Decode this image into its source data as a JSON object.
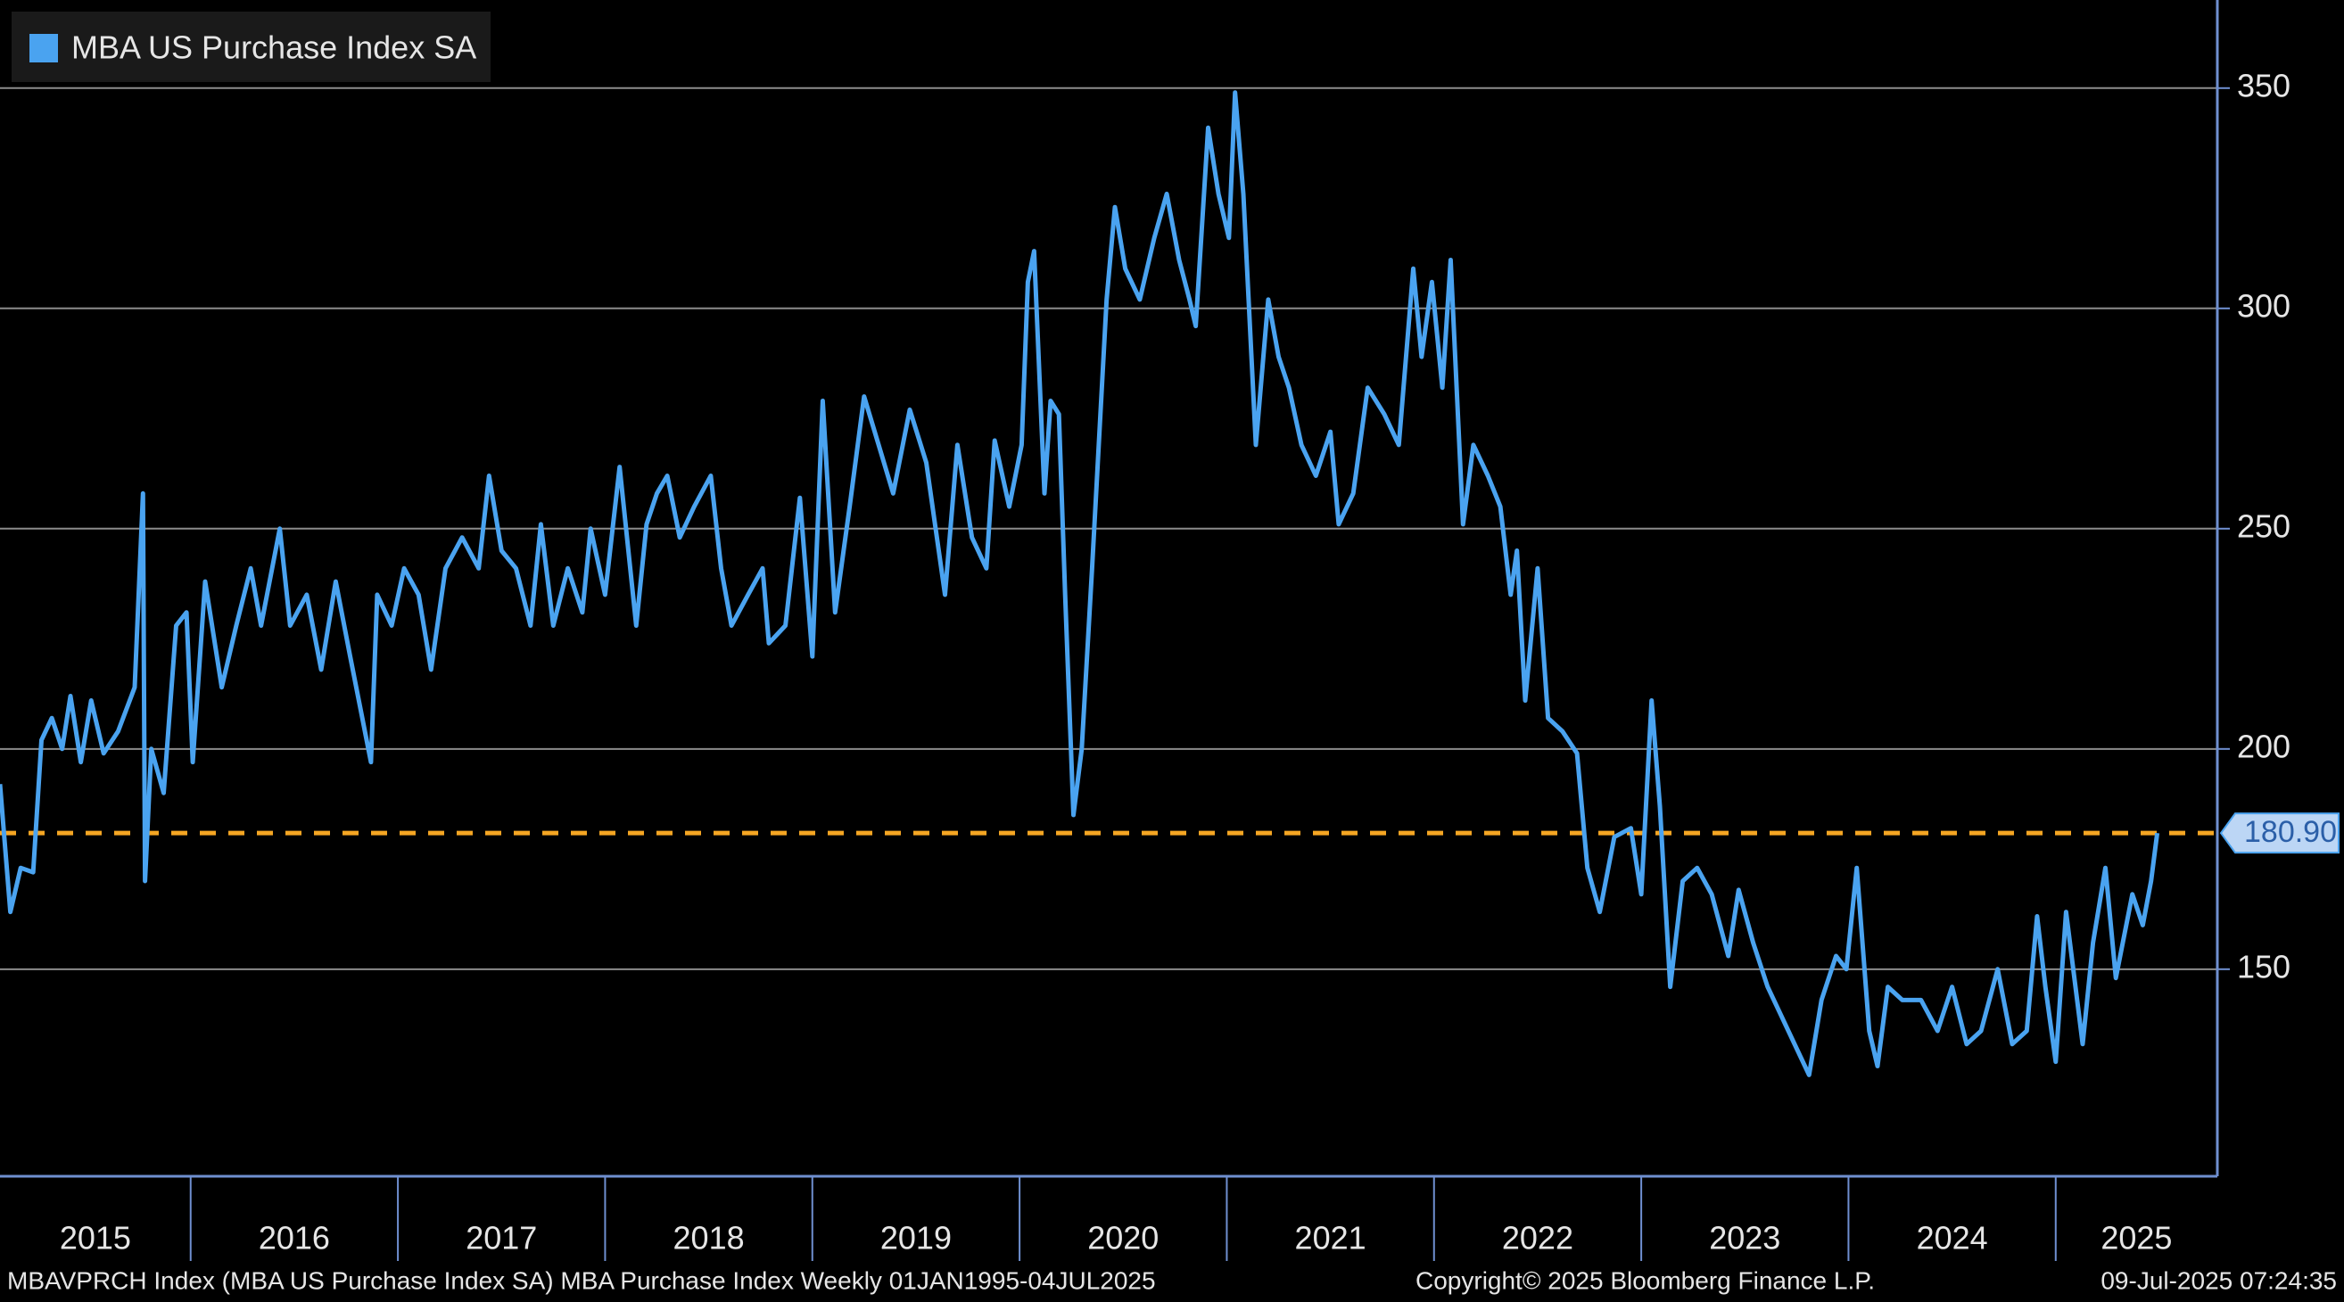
{
  "chart_data": {
    "type": "line",
    "series": [
      {
        "name": "MBA US Purchase Index SA",
        "color": "#4aa3f0",
        "values": [
          192,
          163,
          173,
          172,
          202,
          207,
          200,
          212,
          197,
          211,
          199,
          204,
          214,
          258,
          170,
          200,
          190,
          228,
          231,
          197,
          238,
          214,
          228,
          241,
          228,
          250,
          228,
          235,
          218,
          238,
          221,
          197,
          235,
          228,
          241,
          235,
          218,
          241,
          248,
          241,
          262,
          245,
          241,
          228,
          251,
          228,
          241,
          231,
          250,
          235,
          264,
          228,
          251,
          258,
          262,
          248,
          255,
          262,
          241,
          228,
          235,
          241,
          224,
          228,
          257,
          221,
          279,
          231,
          255,
          280,
          269,
          258,
          277,
          265,
          235,
          269,
          248,
          241,
          270,
          255,
          269,
          306,
          313,
          258,
          279,
          276,
          235,
          185,
          200,
          241,
          302,
          323,
          309,
          302,
          316,
          326,
          311,
          302,
          296,
          341,
          326,
          316,
          349,
          326,
          269,
          302,
          289,
          282,
          269,
          262,
          272,
          251,
          258,
          282,
          276,
          269,
          309,
          289,
          306,
          282,
          311,
          251,
          269,
          262,
          255,
          235,
          245,
          211,
          241,
          207,
          204,
          199,
          173,
          163,
          180,
          182,
          167,
          211,
          187,
          146,
          170,
          173,
          167,
          153,
          168,
          156,
          146,
          139,
          133,
          126,
          143,
          153,
          150,
          173,
          136,
          128,
          146,
          143,
          143,
          136,
          146,
          133,
          136,
          150,
          133,
          136,
          162,
          146,
          129,
          163,
          133,
          156,
          173,
          148,
          167,
          160,
          170,
          180.9
        ]
      }
    ],
    "x": [
      2015.08,
      2015.13,
      2015.18,
      2015.24,
      2015.28,
      2015.33,
      2015.38,
      2015.42,
      2015.47,
      2015.52,
      2015.58,
      2015.65,
      2015.73,
      2015.77,
      2015.78,
      2015.81,
      2015.87,
      2015.93,
      2015.98,
      2016.01,
      2016.07,
      2016.15,
      2016.22,
      2016.29,
      2016.34,
      2016.43,
      2016.48,
      2016.56,
      2016.63,
      2016.7,
      2016.77,
      2016.87,
      2016.9,
      2016.97,
      2017.03,
      2017.1,
      2017.16,
      2017.23,
      2017.31,
      2017.39,
      2017.44,
      2017.5,
      2017.57,
      2017.64,
      2017.69,
      2017.75,
      2017.82,
      2017.89,
      2017.93,
      2018.0,
      2018.07,
      2018.15,
      2018.2,
      2018.25,
      2018.3,
      2018.36,
      2018.43,
      2018.51,
      2018.56,
      2018.61,
      2018.69,
      2018.76,
      2018.79,
      2018.87,
      2018.94,
      2019.0,
      2019.05,
      2019.11,
      2019.18,
      2019.25,
      2019.32,
      2019.39,
      2019.47,
      2019.55,
      2019.64,
      2019.7,
      2019.77,
      2019.84,
      2019.88,
      2019.95,
      2020.01,
      2020.04,
      2020.07,
      2020.12,
      2020.15,
      2020.19,
      2020.22,
      2020.26,
      2020.3,
      2020.35,
      2020.42,
      2020.46,
      2020.51,
      2020.58,
      2020.65,
      2020.71,
      2020.77,
      2020.82,
      2020.85,
      2020.91,
      2020.96,
      2021.01,
      2021.04,
      2021.08,
      2021.14,
      2021.2,
      2021.25,
      2021.3,
      2021.36,
      2021.43,
      2021.5,
      2021.54,
      2021.61,
      2021.68,
      2021.76,
      2021.83,
      2021.9,
      2021.94,
      2021.99,
      2022.04,
      2022.08,
      2022.14,
      2022.19,
      2022.26,
      2022.32,
      2022.37,
      2022.4,
      2022.44,
      2022.5,
      2022.55,
      2022.62,
      2022.69,
      2022.74,
      2022.8,
      2022.87,
      2022.95,
      2023.0,
      2023.05,
      2023.09,
      2023.14,
      2023.2,
      2023.27,
      2023.34,
      2023.42,
      2023.47,
      2023.54,
      2023.61,
      2023.68,
      2023.74,
      2023.81,
      2023.87,
      2023.94,
      2023.99,
      2024.04,
      2024.1,
      2024.14,
      2024.19,
      2024.26,
      2024.35,
      2024.43,
      2024.5,
      2024.57,
      2024.64,
      2024.72,
      2024.79,
      2024.86,
      2024.91,
      2024.95,
      2025.0,
      2025.05,
      2025.13,
      2025.18,
      2025.24,
      2025.29,
      2025.37,
      2025.42,
      2025.46,
      2025.49
    ],
    "xlim": [
      2015.08,
      2025.78
    ],
    "xticks": [
      2015,
      2016,
      2017,
      2018,
      2019,
      2020,
      2021,
      2022,
      2023,
      2024,
      2025
    ],
    "ylim": [
      103,
      370
    ],
    "yticks": [
      150,
      200,
      250,
      300,
      350
    ],
    "grid": true,
    "legend": "upper left",
    "reference_line": {
      "value": 180.9,
      "label": "180.90",
      "color": "#f5a623"
    }
  },
  "footer": {
    "source": "MBAVPRCH Index (MBA US Purchase Index SA) MBA Purchase Index  Weekly 01JAN1995-04JUL2025",
    "copyright": "Copyright© 2025 Bloomberg Finance L.P.",
    "timestamp": "09-Jul-2025 07:24:35"
  }
}
